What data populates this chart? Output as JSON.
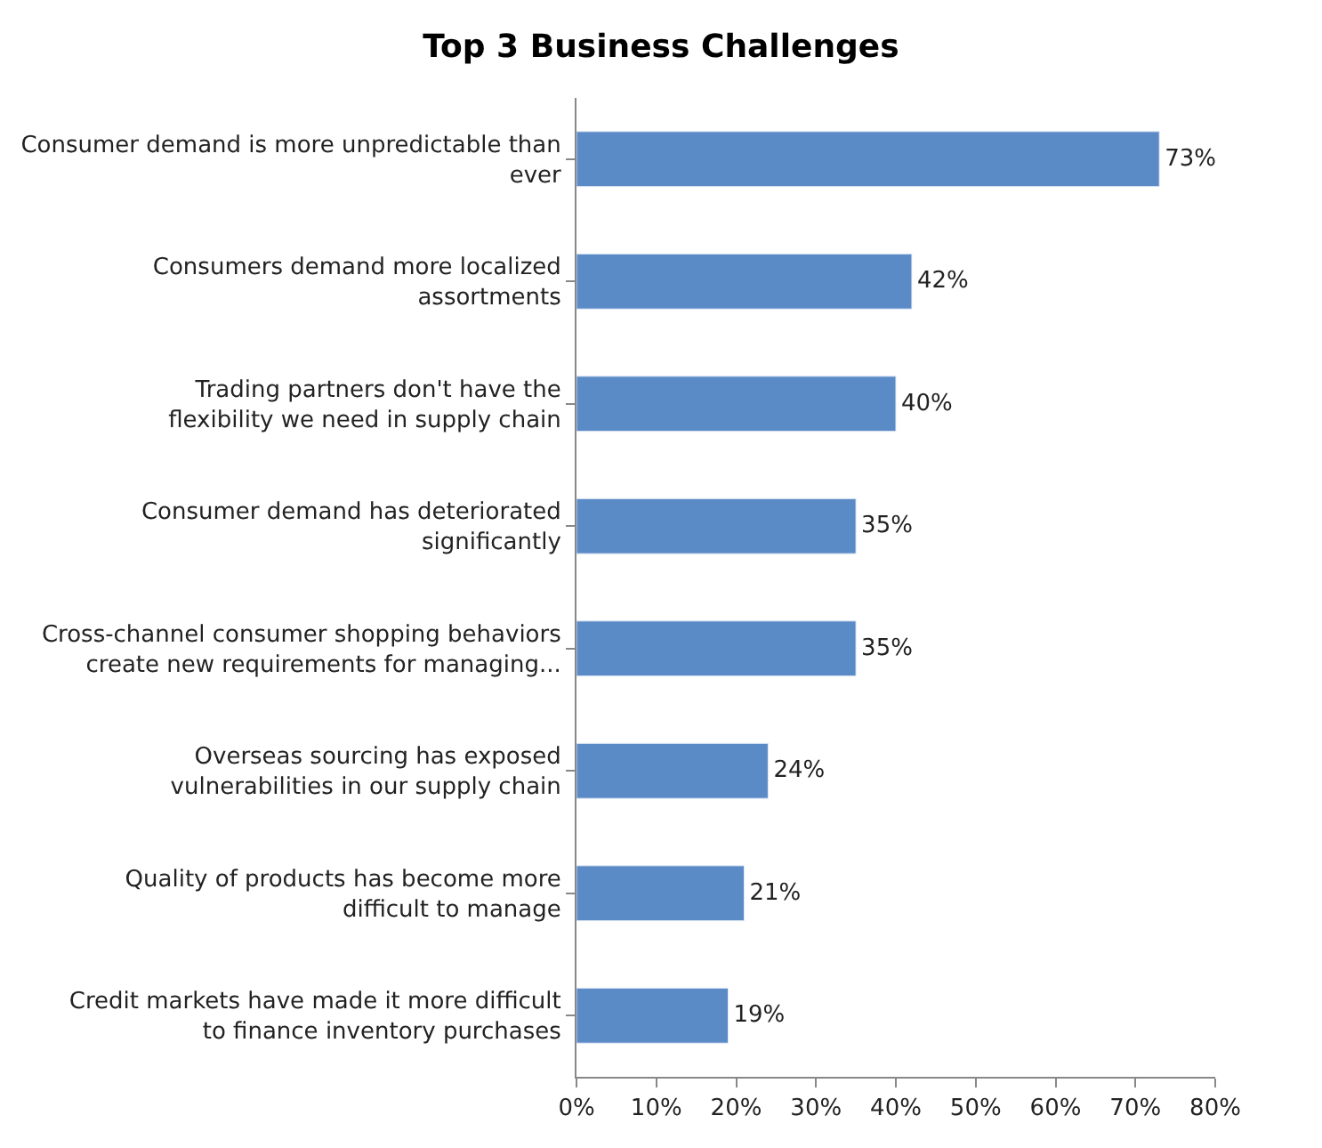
{
  "chart_data": {
    "type": "bar",
    "orientation": "horizontal",
    "title": "Top 3 Business Challenges",
    "categories": [
      "Consumer demand is more unpredictable than ever",
      "Consumers demand more localized assortments",
      "Trading partners don't have the flexibility we need in supply chain",
      "Consumer demand has deteriorated significantly",
      "Cross-channel consumer shopping behaviors create new requirements for managing...",
      "Overseas sourcing has exposed vulnerabilities in our supply chain",
      "Quality of products has become more difficult to manage",
      "Credit markets have made it more difficult to finance inventory purchases"
    ],
    "values": [
      73,
      42,
      40,
      35,
      35,
      24,
      21,
      19
    ],
    "value_labels": [
      "73%",
      "42%",
      "40%",
      "35%",
      "35%",
      "24%",
      "21%",
      "19%"
    ],
    "color": "#5b8bc7",
    "xlim": [
      0,
      80
    ],
    "xticks": [
      {
        "value": 0,
        "label": "0%"
      },
      {
        "value": 10,
        "label": "10%"
      },
      {
        "value": 20,
        "label": "20%"
      },
      {
        "value": 30,
        "label": "30%"
      },
      {
        "value": 40,
        "label": "40%"
      },
      {
        "value": 50,
        "label": "50%"
      },
      {
        "value": 60,
        "label": "60%"
      },
      {
        "value": 70,
        "label": "70%"
      },
      {
        "value": 80,
        "label": "80%"
      }
    ],
    "legend": false
  }
}
